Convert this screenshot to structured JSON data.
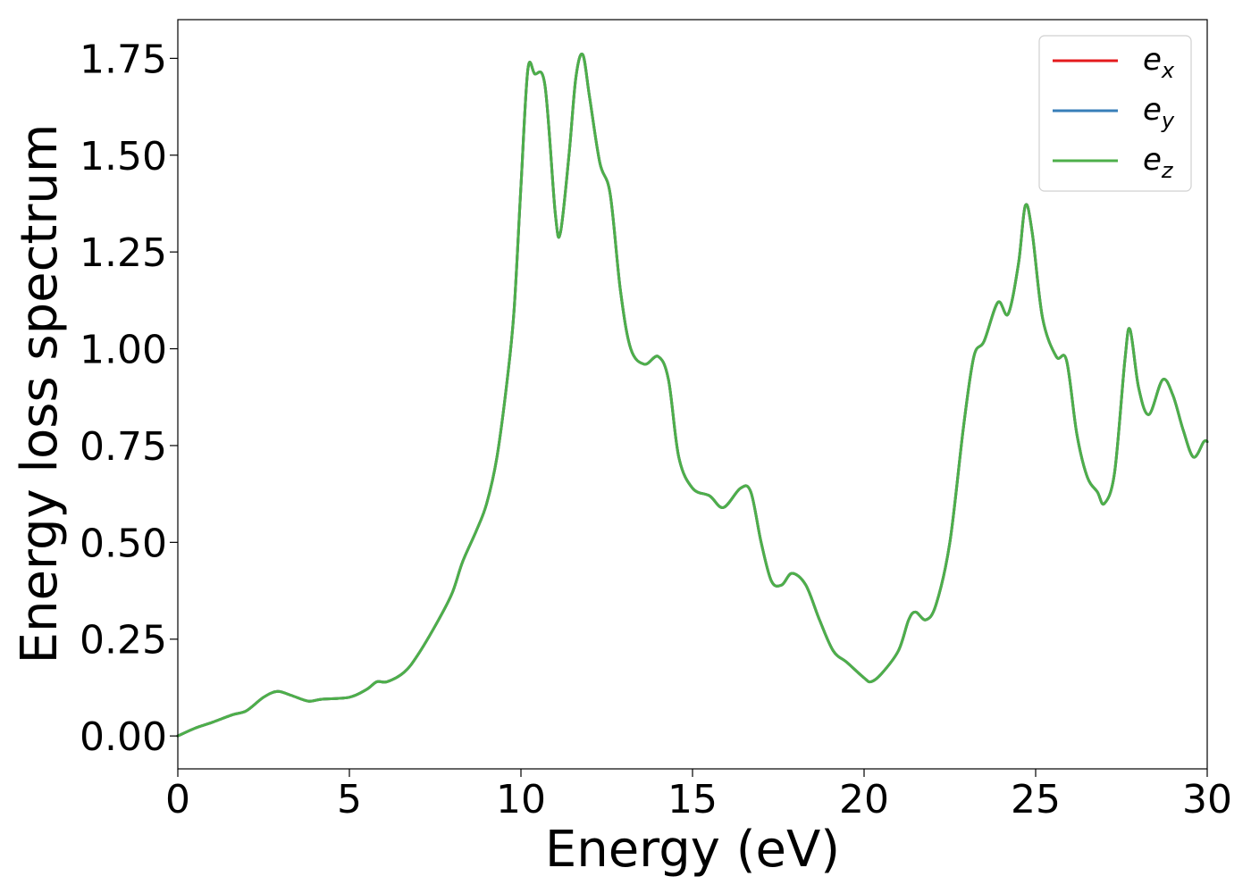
{
  "chart_data": {
    "type": "line",
    "title": "",
    "xlabel": "Energy (eV)",
    "ylabel": "Energy loss spectrum",
    "xlim": [
      0,
      30
    ],
    "ylim": [
      -0.085,
      1.85
    ],
    "xticks": [
      0,
      5,
      10,
      15,
      20,
      25,
      30
    ],
    "xtick_labels": [
      "0",
      "5",
      "10",
      "15",
      "20",
      "25",
      "30"
    ],
    "yticks": [
      0.0,
      0.25,
      0.5,
      0.75,
      1.0,
      1.25,
      1.5,
      1.75
    ],
    "ytick_labels": [
      "0.00",
      "0.25",
      "0.50",
      "0.75",
      "1.00",
      "1.25",
      "1.50",
      "1.75"
    ],
    "grid": false,
    "legend_position": "top-right",
    "x": [
      0,
      0.5,
      1.0,
      1.6,
      2.0,
      2.5,
      2.9,
      3.3,
      3.8,
      4.2,
      5.0,
      5.5,
      5.8,
      6.1,
      6.6,
      7.0,
      7.6,
      8.0,
      8.3,
      8.7,
      9.0,
      9.3,
      9.6,
      9.8,
      10.0,
      10.2,
      10.4,
      10.7,
      11.0,
      11.15,
      11.4,
      11.6,
      11.8,
      12.0,
      12.3,
      12.6,
      12.9,
      13.2,
      13.6,
      14.0,
      14.3,
      14.6,
      15.0,
      15.5,
      15.9,
      16.4,
      16.7,
      17.0,
      17.3,
      17.6,
      17.9,
      18.3,
      18.7,
      19.1,
      19.5,
      20.0,
      20.2,
      20.5,
      21.0,
      21.3,
      21.5,
      21.8,
      22.1,
      22.5,
      22.9,
      23.2,
      23.5,
      23.9,
      24.2,
      24.5,
      24.7,
      24.9,
      25.2,
      25.6,
      25.9,
      26.2,
      26.5,
      26.8,
      27.0,
      27.3,
      27.6,
      27.75,
      28.0,
      28.3,
      28.7,
      29.0,
      29.3,
      29.6,
      29.9,
      30.0
    ],
    "series": [
      {
        "name": "e_x",
        "color": "#e41a1c",
        "values": [
          0.0,
          0.02,
          0.035,
          0.055,
          0.065,
          0.1,
          0.115,
          0.105,
          0.09,
          0.095,
          0.1,
          0.12,
          0.14,
          0.14,
          0.165,
          0.21,
          0.3,
          0.37,
          0.45,
          0.53,
          0.6,
          0.72,
          0.92,
          1.1,
          1.42,
          1.72,
          1.71,
          1.68,
          1.35,
          1.3,
          1.5,
          1.7,
          1.76,
          1.65,
          1.48,
          1.4,
          1.15,
          1.0,
          0.96,
          0.98,
          0.92,
          0.72,
          0.64,
          0.62,
          0.59,
          0.64,
          0.63,
          0.5,
          0.4,
          0.39,
          0.42,
          0.39,
          0.3,
          0.22,
          0.19,
          0.15,
          0.14,
          0.16,
          0.22,
          0.3,
          0.32,
          0.3,
          0.34,
          0.5,
          0.8,
          0.98,
          1.02,
          1.12,
          1.09,
          1.22,
          1.37,
          1.3,
          1.08,
          0.98,
          0.97,
          0.78,
          0.67,
          0.63,
          0.6,
          0.68,
          0.97,
          1.05,
          0.9,
          0.83,
          0.92,
          0.88,
          0.79,
          0.72,
          0.76,
          0.76
        ]
      },
      {
        "name": "e_y",
        "color": "#377eb8",
        "values": [
          0.0,
          0.02,
          0.035,
          0.055,
          0.065,
          0.1,
          0.115,
          0.105,
          0.09,
          0.095,
          0.1,
          0.12,
          0.14,
          0.14,
          0.165,
          0.21,
          0.3,
          0.37,
          0.45,
          0.53,
          0.6,
          0.72,
          0.92,
          1.1,
          1.42,
          1.72,
          1.71,
          1.68,
          1.35,
          1.3,
          1.5,
          1.7,
          1.76,
          1.65,
          1.48,
          1.4,
          1.15,
          1.0,
          0.96,
          0.98,
          0.92,
          0.72,
          0.64,
          0.62,
          0.59,
          0.64,
          0.63,
          0.5,
          0.4,
          0.39,
          0.42,
          0.39,
          0.3,
          0.22,
          0.19,
          0.15,
          0.14,
          0.16,
          0.22,
          0.3,
          0.32,
          0.3,
          0.34,
          0.5,
          0.8,
          0.98,
          1.02,
          1.12,
          1.09,
          1.22,
          1.37,
          1.3,
          1.08,
          0.98,
          0.97,
          0.78,
          0.67,
          0.63,
          0.6,
          0.68,
          0.97,
          1.05,
          0.9,
          0.83,
          0.92,
          0.88,
          0.79,
          0.72,
          0.76,
          0.76
        ]
      },
      {
        "name": "e_z",
        "color": "#4daf4a",
        "values": [
          0.0,
          0.02,
          0.035,
          0.055,
          0.065,
          0.1,
          0.115,
          0.105,
          0.09,
          0.095,
          0.1,
          0.12,
          0.14,
          0.14,
          0.165,
          0.21,
          0.3,
          0.37,
          0.45,
          0.53,
          0.6,
          0.72,
          0.92,
          1.1,
          1.42,
          1.72,
          1.71,
          1.68,
          1.35,
          1.3,
          1.5,
          1.7,
          1.76,
          1.65,
          1.48,
          1.4,
          1.15,
          1.0,
          0.96,
          0.98,
          0.92,
          0.72,
          0.64,
          0.62,
          0.59,
          0.64,
          0.63,
          0.5,
          0.4,
          0.39,
          0.42,
          0.39,
          0.3,
          0.22,
          0.19,
          0.15,
          0.14,
          0.16,
          0.22,
          0.3,
          0.32,
          0.3,
          0.34,
          0.5,
          0.8,
          0.98,
          1.02,
          1.12,
          1.09,
          1.22,
          1.37,
          1.3,
          1.08,
          0.98,
          0.97,
          0.78,
          0.67,
          0.63,
          0.6,
          0.68,
          0.97,
          1.05,
          0.9,
          0.83,
          0.92,
          0.88,
          0.79,
          0.72,
          0.76,
          0.76
        ]
      }
    ],
    "legend": [
      {
        "base": "e",
        "sub": "x",
        "color": "#e41a1c"
      },
      {
        "base": "e",
        "sub": "y",
        "color": "#377eb8"
      },
      {
        "base": "e",
        "sub": "z",
        "color": "#4daf4a"
      }
    ]
  }
}
